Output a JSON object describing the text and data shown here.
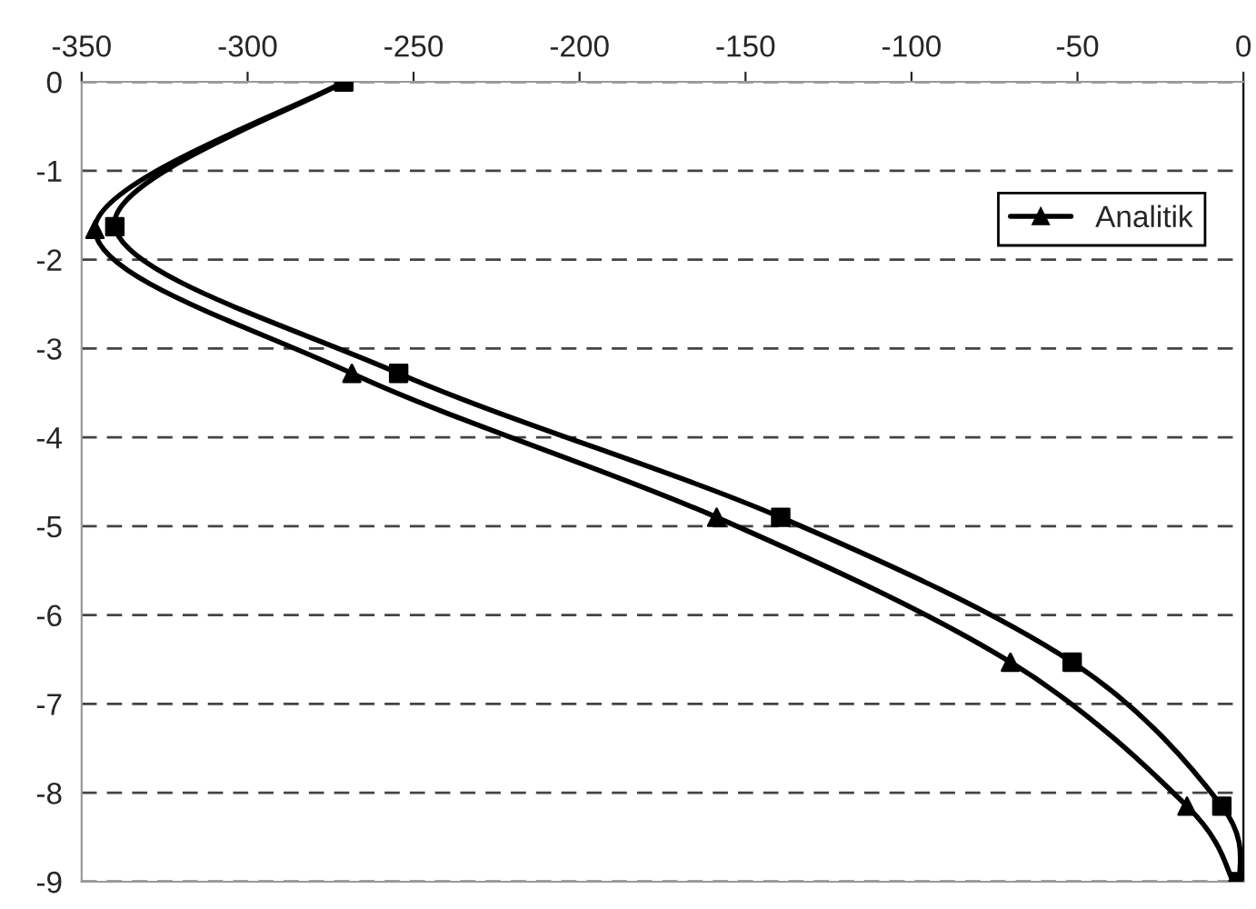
{
  "chart_data": {
    "type": "line",
    "series": [
      {
        "color": "#000000",
        "marker": "square",
        "x": [
          -271,
          -340,
          -254.5,
          -139.4,
          -51.6,
          -6.5,
          -1
        ],
        "values": [
          0,
          -1.63,
          -3.28,
          -4.9,
          -6.53,
          -8.15,
          -9
        ]
      },
      {
        "name": "Analitik",
        "color": "#000000",
        "marker": "triangle",
        "x": [
          -271,
          -346,
          -268.6,
          -158.7,
          -70.2,
          -17,
          -3
        ],
        "values": [
          0,
          -1.66,
          -3.28,
          -4.9,
          -6.53,
          -8.15,
          -9
        ]
      }
    ],
    "xlim": [
      -350,
      0
    ],
    "xticks": [
      -350,
      -300,
      -250,
      -200,
      -150,
      -100,
      -50,
      0
    ],
    "ylim": [
      -9,
      0
    ],
    "yticks": [
      -9,
      -8,
      -7,
      -6,
      -5,
      -4,
      -3,
      -2,
      -1,
      0
    ],
    "grid": "y",
    "legend": "top right",
    "line_style": "solid"
  }
}
